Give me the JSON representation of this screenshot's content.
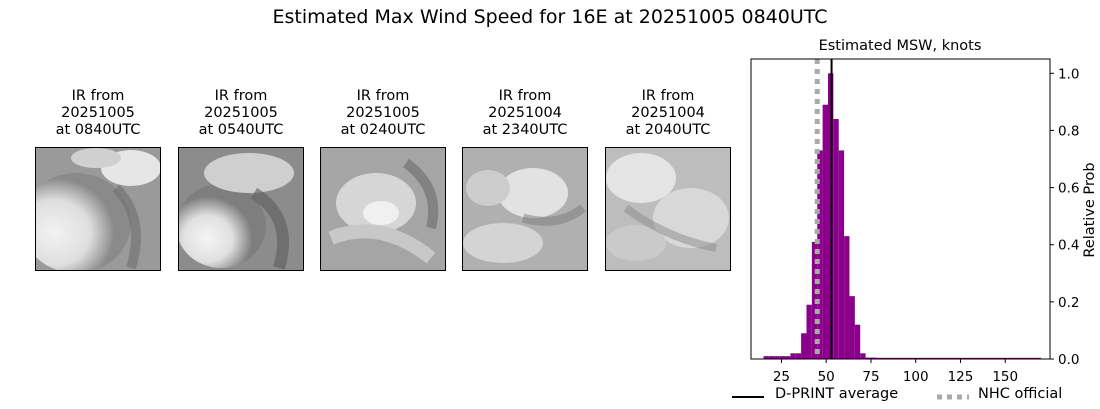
{
  "title": "Estimated Max Wind Speed for 16E at 20251005 0840UTC",
  "panels": [
    {
      "line1": "IR from",
      "line2": "20251005",
      "line3": "at 0840UTC"
    },
    {
      "line1": "IR from",
      "line2": "20251005",
      "line3": "at 0540UTC"
    },
    {
      "line1": "IR from",
      "line2": "20251005",
      "line3": "at 0240UTC"
    },
    {
      "line1": "IR from",
      "line2": "20251004",
      "line3": "at 2340UTC"
    },
    {
      "line1": "IR from",
      "line2": "20251004",
      "line3": "at 2040UTC"
    }
  ],
  "legend": {
    "dprint": "D-PRINT average",
    "nhc": "NHC official"
  },
  "chart_data": {
    "type": "bar",
    "title": "Estimated MSW, knots",
    "xlabel": "",
    "ylabel": "Relative Prob",
    "xlim": [
      8,
      175
    ],
    "ylim": [
      0,
      1.05
    ],
    "x_ticks": [
      25,
      50,
      75,
      100,
      125,
      150
    ],
    "y_ticks": [
      0.0,
      0.2,
      0.4,
      0.6,
      0.8,
      1.0
    ],
    "y_tick_labels": [
      "0.0",
      "0.2",
      "0.4",
      "0.6",
      "0.8",
      "1.0"
    ],
    "y_axis_side": "right",
    "bin_width": 3,
    "bar_color": "#8b008b",
    "bins_start": [
      15,
      18,
      21,
      24,
      27,
      30,
      33,
      36,
      39,
      42,
      45,
      48,
      51,
      54,
      57,
      60,
      63,
      66,
      69,
      72,
      75
    ],
    "values": [
      0.01,
      0.01,
      0.01,
      0.01,
      0.01,
      0.02,
      0.02,
      0.09,
      0.19,
      0.41,
      0.73,
      0.89,
      1.0,
      0.84,
      0.73,
      0.43,
      0.22,
      0.12,
      0.02,
      0.005,
      0.005
    ],
    "tail": {
      "from": 75,
      "to": 170,
      "value": 0.005
    },
    "dprint_average": 53,
    "nhc_official": 45,
    "dprint_color": "#000000",
    "nhc_color": "#aaaaaa",
    "legend_position": "bottom"
  }
}
